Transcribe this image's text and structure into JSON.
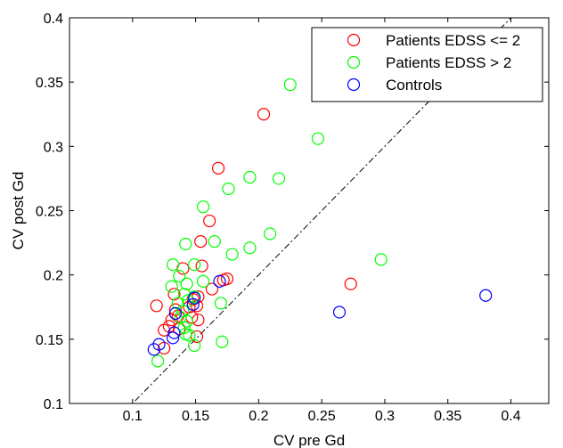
{
  "chart_data": {
    "type": "scatter",
    "xlabel": "CV pre Gd",
    "ylabel": "CV post Gd",
    "xlim": [
      0.05,
      0.43
    ],
    "ylim": [
      0.1,
      0.4
    ],
    "x_ticks": [
      0.1,
      0.15,
      0.2,
      0.25,
      0.3,
      0.35,
      0.4
    ],
    "y_ticks": [
      0.1,
      0.15,
      0.2,
      0.25,
      0.3,
      0.35,
      0.4
    ],
    "x_tick_labels": [
      "0.1",
      "0.15",
      "0.2",
      "0.25",
      "0.3",
      "0.35",
      "0.4"
    ],
    "y_tick_labels": [
      "0.1",
      "0.15",
      "0.2",
      "0.25",
      "0.3",
      "0.35",
      "0.4"
    ],
    "grid": false,
    "legend_position": "top-right",
    "reference_line": {
      "style": "dash-dot",
      "from": [
        0.05,
        0.05
      ],
      "to": [
        0.43,
        0.43
      ]
    },
    "series": [
      {
        "name": "Patients EDSS <= 2",
        "color": "#ff0000",
        "marker": "circle-open",
        "points": [
          [
            0.204,
            0.325
          ],
          [
            0.168,
            0.283
          ],
          [
            0.161,
            0.242
          ],
          [
            0.154,
            0.226
          ],
          [
            0.155,
            0.207
          ],
          [
            0.14,
            0.205
          ],
          [
            0.175,
            0.197
          ],
          [
            0.172,
            0.196
          ],
          [
            0.163,
            0.189
          ],
          [
            0.152,
            0.183
          ],
          [
            0.148,
            0.181
          ],
          [
            0.133,
            0.185
          ],
          [
            0.134,
            0.173
          ],
          [
            0.131,
            0.165
          ],
          [
            0.129,
            0.16
          ],
          [
            0.125,
            0.157
          ],
          [
            0.137,
            0.158
          ],
          [
            0.119,
            0.176
          ],
          [
            0.151,
            0.176
          ],
          [
            0.145,
            0.175
          ],
          [
            0.147,
            0.167
          ],
          [
            0.152,
            0.165
          ],
          [
            0.136,
            0.168
          ],
          [
            0.125,
            0.143
          ],
          [
            0.151,
            0.152
          ],
          [
            0.273,
            0.193
          ]
        ]
      },
      {
        "name": "Patients EDSS > 2",
        "color": "#00ff00",
        "marker": "circle-open",
        "points": [
          [
            0.225,
            0.348
          ],
          [
            0.247,
            0.306
          ],
          [
            0.193,
            0.276
          ],
          [
            0.216,
            0.275
          ],
          [
            0.176,
            0.267
          ],
          [
            0.156,
            0.253
          ],
          [
            0.209,
            0.232
          ],
          [
            0.165,
            0.226
          ],
          [
            0.142,
            0.224
          ],
          [
            0.193,
            0.221
          ],
          [
            0.179,
            0.216
          ],
          [
            0.132,
            0.208
          ],
          [
            0.149,
            0.208
          ],
          [
            0.156,
            0.195
          ],
          [
            0.143,
            0.193
          ],
          [
            0.137,
            0.199
          ],
          [
            0.131,
            0.191
          ],
          [
            0.141,
            0.185
          ],
          [
            0.149,
            0.183
          ],
          [
            0.136,
            0.178
          ],
          [
            0.144,
            0.18
          ],
          [
            0.14,
            0.172
          ],
          [
            0.138,
            0.167
          ],
          [
            0.143,
            0.164
          ],
          [
            0.141,
            0.159
          ],
          [
            0.145,
            0.153
          ],
          [
            0.142,
            0.154
          ],
          [
            0.17,
            0.178
          ],
          [
            0.149,
            0.145
          ],
          [
            0.171,
            0.148
          ],
          [
            0.297,
            0.212
          ],
          [
            0.12,
            0.133
          ]
        ]
      },
      {
        "name": "Controls",
        "color": "#0000ff",
        "marker": "circle-open",
        "points": [
          [
            0.38,
            0.184
          ],
          [
            0.264,
            0.171
          ],
          [
            0.169,
            0.195
          ],
          [
            0.149,
            0.182
          ],
          [
            0.148,
            0.177
          ],
          [
            0.134,
            0.17
          ],
          [
            0.133,
            0.155
          ],
          [
            0.132,
            0.151
          ],
          [
            0.121,
            0.146
          ],
          [
            0.117,
            0.142
          ]
        ]
      }
    ]
  }
}
